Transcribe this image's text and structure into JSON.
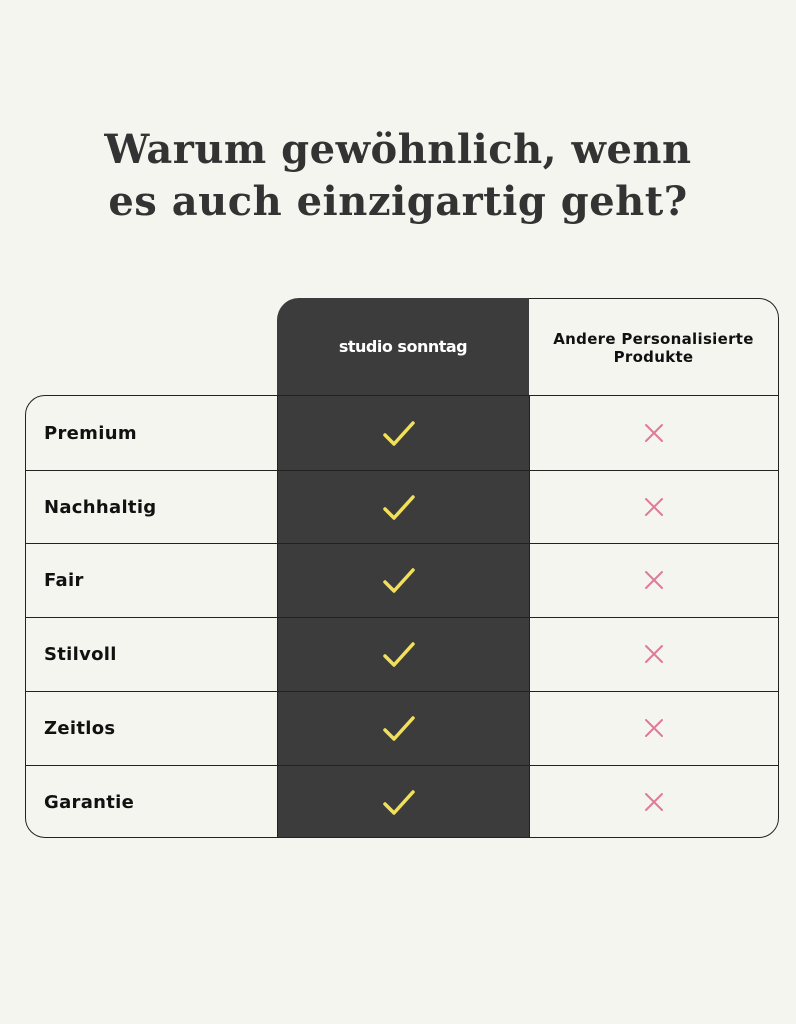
{
  "heading": {
    "line1": "Warum gewöhnlich, wenn",
    "line2": "es auch einzigartig geht?"
  },
  "columns": {
    "brand": "studio sonntag",
    "other": "Andere Personalisierte Produkte"
  },
  "colors": {
    "background": "#f5f5f0",
    "brand_column": "#3c3c3c",
    "check": "#f2e05a",
    "cross": "#e07a98"
  },
  "rows": [
    {
      "label": "Premium",
      "brand": "check-icon",
      "other": "cross-icon"
    },
    {
      "label": "Nachhaltig",
      "brand": "check-icon",
      "other": "cross-icon"
    },
    {
      "label": "Fair",
      "brand": "check-icon",
      "other": "cross-icon"
    },
    {
      "label": "Stilvoll",
      "brand": "check-icon",
      "other": "cross-icon"
    },
    {
      "label": "Zeitlos",
      "brand": "check-icon",
      "other": "cross-icon"
    },
    {
      "label": "Garantie",
      "brand": "check-icon",
      "other": "cross-icon"
    }
  ]
}
